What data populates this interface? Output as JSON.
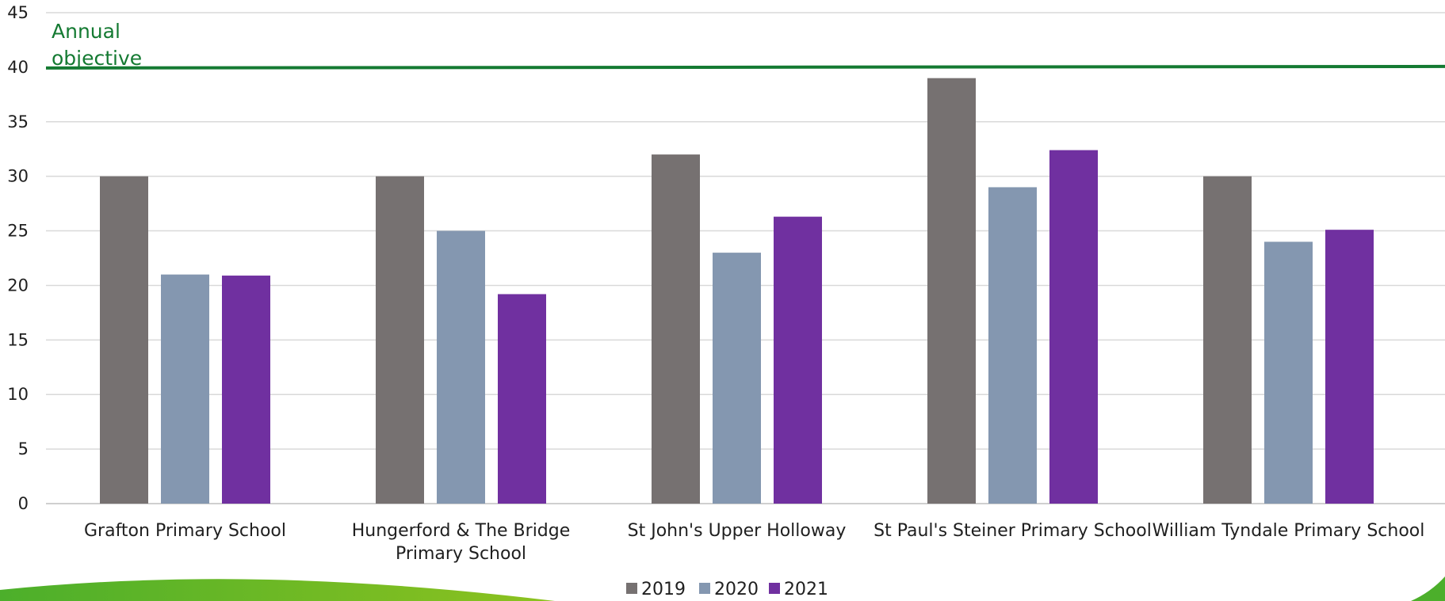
{
  "chart_data": {
    "type": "bar",
    "categories": [
      [
        "Grafton Primary School"
      ],
      [
        "Hungerford & The Bridge",
        "Primary School"
      ],
      [
        "St John's Upper Holloway"
      ],
      [
        "St Paul's Steiner Primary School"
      ],
      [
        "William Tyndale Primary School"
      ]
    ],
    "series": [
      {
        "name": "2019",
        "color": "#767171",
        "values": [
          30,
          30,
          32,
          39,
          30
        ]
      },
      {
        "name": "2020",
        "color": "#8497b0",
        "values": [
          21,
          25,
          23,
          29,
          24
        ]
      },
      {
        "name": "2021",
        "color": "#7030a0",
        "values": [
          20.9,
          19.2,
          26.3,
          32.4,
          25.1
        ]
      }
    ],
    "ylim": [
      0,
      45
    ],
    "yticks": [
      "0",
      "5",
      "10",
      "15",
      "20",
      "25",
      "30",
      "35",
      "40",
      "45"
    ],
    "grid": true,
    "legend_position": "bottom",
    "reference_line": {
      "value": 40,
      "label_lines": [
        "Annual",
        "objective"
      ],
      "color": "#147a32"
    }
  },
  "decoration": {
    "swoosh_colors": [
      "#4caf2b",
      "#8dc21f"
    ]
  }
}
